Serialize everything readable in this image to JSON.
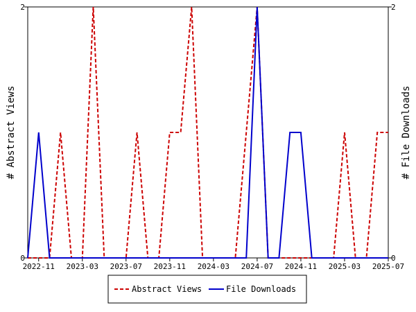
{
  "chart_data": {
    "type": "line",
    "y_left_label": "# Abstract Views",
    "y_right_label": "# File Downloads",
    "y_left_ticks": [
      "0",
      "2"
    ],
    "y_right_ticks": [
      "0",
      "2"
    ],
    "ylim": [
      0,
      2
    ],
    "x_tick_labels": [
      "2022-11",
      "2023-03",
      "2023-07",
      "2023-11",
      "2024-03",
      "2024-07",
      "2024-11",
      "2025-03",
      "2025-07"
    ],
    "x_tick_months": [
      0,
      4,
      8,
      12,
      16,
      20,
      24,
      28,
      32
    ],
    "x_range_months": [
      -1,
      32
    ],
    "grid": false,
    "legend_position": "bottom",
    "series": [
      {
        "name": "Abstract Views",
        "color": "#cc0000",
        "style": "dashed",
        "x_months": [
          -1,
          0,
          1,
          2,
          3,
          4,
          5,
          6,
          7,
          8,
          9,
          10,
          11,
          12,
          13,
          14,
          15,
          16,
          17,
          18,
          19,
          20,
          21,
          22,
          23,
          24,
          25,
          26,
          27,
          28,
          29,
          30,
          31,
          32
        ],
        "values": [
          0,
          0,
          0,
          1,
          0,
          0,
          2,
          0,
          0,
          0,
          1,
          0,
          0,
          1,
          1,
          2,
          0,
          0,
          0,
          0,
          1,
          2,
          0,
          0,
          0,
          0,
          0,
          0,
          0,
          1,
          0,
          0,
          1,
          1
        ]
      },
      {
        "name": "File Downloads",
        "color": "#0000cc",
        "style": "solid",
        "x_months": [
          -1,
          0,
          1,
          2,
          3,
          4,
          5,
          6,
          7,
          8,
          9,
          10,
          11,
          12,
          13,
          14,
          15,
          16,
          17,
          18,
          19,
          20,
          21,
          22,
          23,
          24,
          25,
          26,
          27,
          28,
          29,
          30,
          31,
          32
        ],
        "values": [
          0,
          1,
          0,
          0,
          0,
          0,
          0,
          0,
          0,
          0,
          0,
          0,
          0,
          0,
          0,
          0,
          0,
          0,
          0,
          0,
          0,
          2,
          0,
          0,
          1,
          1,
          0,
          0,
          0,
          0,
          0,
          0,
          0,
          0
        ]
      }
    ]
  }
}
